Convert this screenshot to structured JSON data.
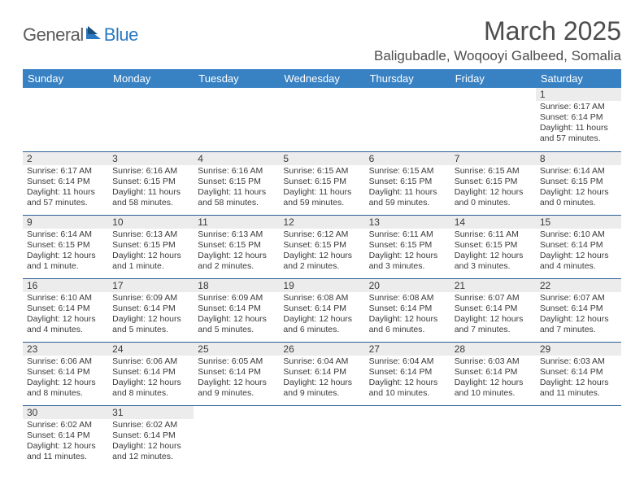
{
  "brand": {
    "part1": "General",
    "part2": "Blue"
  },
  "title": "March 2025",
  "location": "Baligubadle, Woqooyi Galbeed, Somalia",
  "day_headers": [
    "Sunday",
    "Monday",
    "Tuesday",
    "Wednesday",
    "Thursday",
    "Friday",
    "Saturday"
  ],
  "colors": {
    "header_bg": "#3882c4",
    "header_text": "#ffffff",
    "daynum_bg": "#ececec",
    "row_border": "#2b5f95",
    "logo_general": "#5b5b5b",
    "logo_blue": "#2b78c2",
    "body_text": "#3a3a3a",
    "title_text": "#4d4d4d"
  },
  "weeks": [
    [
      null,
      null,
      null,
      null,
      null,
      null,
      {
        "n": "1",
        "sunrise": "6:17 AM",
        "sunset": "6:14 PM",
        "daylight": "11 hours and 57 minutes."
      }
    ],
    [
      {
        "n": "2",
        "sunrise": "6:17 AM",
        "sunset": "6:14 PM",
        "daylight": "11 hours and 57 minutes."
      },
      {
        "n": "3",
        "sunrise": "6:16 AM",
        "sunset": "6:15 PM",
        "daylight": "11 hours and 58 minutes."
      },
      {
        "n": "4",
        "sunrise": "6:16 AM",
        "sunset": "6:15 PM",
        "daylight": "11 hours and 58 minutes."
      },
      {
        "n": "5",
        "sunrise": "6:15 AM",
        "sunset": "6:15 PM",
        "daylight": "11 hours and 59 minutes."
      },
      {
        "n": "6",
        "sunrise": "6:15 AM",
        "sunset": "6:15 PM",
        "daylight": "11 hours and 59 minutes."
      },
      {
        "n": "7",
        "sunrise": "6:15 AM",
        "sunset": "6:15 PM",
        "daylight": "12 hours and 0 minutes."
      },
      {
        "n": "8",
        "sunrise": "6:14 AM",
        "sunset": "6:15 PM",
        "daylight": "12 hours and 0 minutes."
      }
    ],
    [
      {
        "n": "9",
        "sunrise": "6:14 AM",
        "sunset": "6:15 PM",
        "daylight": "12 hours and 1 minute."
      },
      {
        "n": "10",
        "sunrise": "6:13 AM",
        "sunset": "6:15 PM",
        "daylight": "12 hours and 1 minute."
      },
      {
        "n": "11",
        "sunrise": "6:13 AM",
        "sunset": "6:15 PM",
        "daylight": "12 hours and 2 minutes."
      },
      {
        "n": "12",
        "sunrise": "6:12 AM",
        "sunset": "6:15 PM",
        "daylight": "12 hours and 2 minutes."
      },
      {
        "n": "13",
        "sunrise": "6:11 AM",
        "sunset": "6:15 PM",
        "daylight": "12 hours and 3 minutes."
      },
      {
        "n": "14",
        "sunrise": "6:11 AM",
        "sunset": "6:15 PM",
        "daylight": "12 hours and 3 minutes."
      },
      {
        "n": "15",
        "sunrise": "6:10 AM",
        "sunset": "6:14 PM",
        "daylight": "12 hours and 4 minutes."
      }
    ],
    [
      {
        "n": "16",
        "sunrise": "6:10 AM",
        "sunset": "6:14 PM",
        "daylight": "12 hours and 4 minutes."
      },
      {
        "n": "17",
        "sunrise": "6:09 AM",
        "sunset": "6:14 PM",
        "daylight": "12 hours and 5 minutes."
      },
      {
        "n": "18",
        "sunrise": "6:09 AM",
        "sunset": "6:14 PM",
        "daylight": "12 hours and 5 minutes."
      },
      {
        "n": "19",
        "sunrise": "6:08 AM",
        "sunset": "6:14 PM",
        "daylight": "12 hours and 6 minutes."
      },
      {
        "n": "20",
        "sunrise": "6:08 AM",
        "sunset": "6:14 PM",
        "daylight": "12 hours and 6 minutes."
      },
      {
        "n": "21",
        "sunrise": "6:07 AM",
        "sunset": "6:14 PM",
        "daylight": "12 hours and 7 minutes."
      },
      {
        "n": "22",
        "sunrise": "6:07 AM",
        "sunset": "6:14 PM",
        "daylight": "12 hours and 7 minutes."
      }
    ],
    [
      {
        "n": "23",
        "sunrise": "6:06 AM",
        "sunset": "6:14 PM",
        "daylight": "12 hours and 8 minutes."
      },
      {
        "n": "24",
        "sunrise": "6:06 AM",
        "sunset": "6:14 PM",
        "daylight": "12 hours and 8 minutes."
      },
      {
        "n": "25",
        "sunrise": "6:05 AM",
        "sunset": "6:14 PM",
        "daylight": "12 hours and 9 minutes."
      },
      {
        "n": "26",
        "sunrise": "6:04 AM",
        "sunset": "6:14 PM",
        "daylight": "12 hours and 9 minutes."
      },
      {
        "n": "27",
        "sunrise": "6:04 AM",
        "sunset": "6:14 PM",
        "daylight": "12 hours and 10 minutes."
      },
      {
        "n": "28",
        "sunrise": "6:03 AM",
        "sunset": "6:14 PM",
        "daylight": "12 hours and 10 minutes."
      },
      {
        "n": "29",
        "sunrise": "6:03 AM",
        "sunset": "6:14 PM",
        "daylight": "12 hours and 11 minutes."
      }
    ],
    [
      {
        "n": "30",
        "sunrise": "6:02 AM",
        "sunset": "6:14 PM",
        "daylight": "12 hours and 11 minutes."
      },
      {
        "n": "31",
        "sunrise": "6:02 AM",
        "sunset": "6:14 PM",
        "daylight": "12 hours and 12 minutes."
      },
      null,
      null,
      null,
      null,
      null
    ]
  ],
  "labels": {
    "sunrise_prefix": "Sunrise: ",
    "sunset_prefix": "Sunset: ",
    "daylight_prefix": "Daylight: "
  }
}
